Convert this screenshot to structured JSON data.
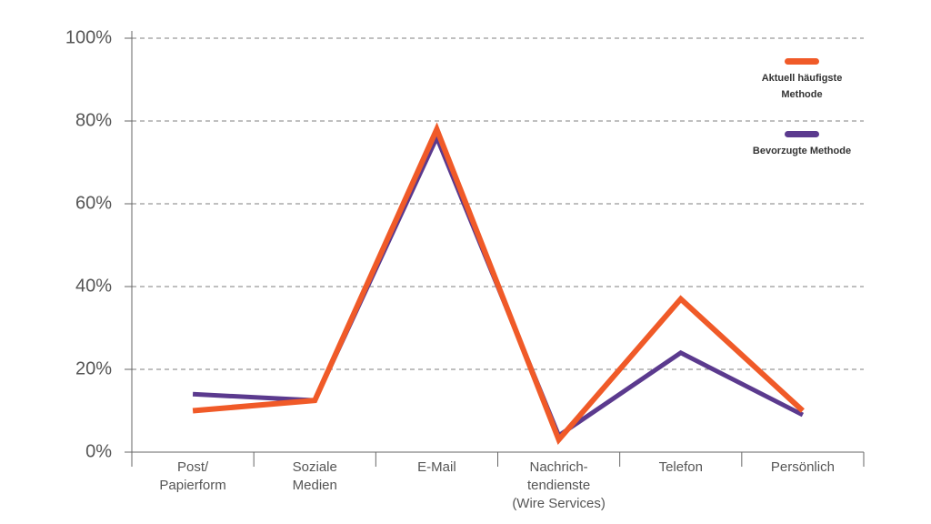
{
  "chart_data": {
    "type": "line",
    "categories": [
      [
        "Post/",
        "Papierform"
      ],
      [
        "Soziale",
        "Medien"
      ],
      [
        "E-Mail"
      ],
      [
        "Nachrich-",
        "tendienste",
        "(Wire Services)"
      ],
      [
        "Telefon"
      ],
      [
        "Persönlich"
      ]
    ],
    "series": [
      {
        "name": "Aktuell häufigste Methode",
        "color": "#f05a28",
        "values": [
          10,
          12.5,
          78,
          3,
          37,
          10
        ]
      },
      {
        "name": "Bevorzugte Methode",
        "color": "#5b3a8e",
        "values": [
          14,
          12.5,
          76,
          4,
          24,
          9
        ]
      }
    ],
    "ylim": [
      0,
      100
    ],
    "yticks": [
      {
        "value": 0,
        "label": "0%"
      },
      {
        "value": 20,
        "label": "20%"
      },
      {
        "value": 40,
        "label": "40%"
      },
      {
        "value": 60,
        "label": "60%"
      },
      {
        "value": 80,
        "label": "80%"
      },
      {
        "value": 100,
        "label": "100%"
      }
    ],
    "grid": true,
    "legend": "top-right"
  }
}
